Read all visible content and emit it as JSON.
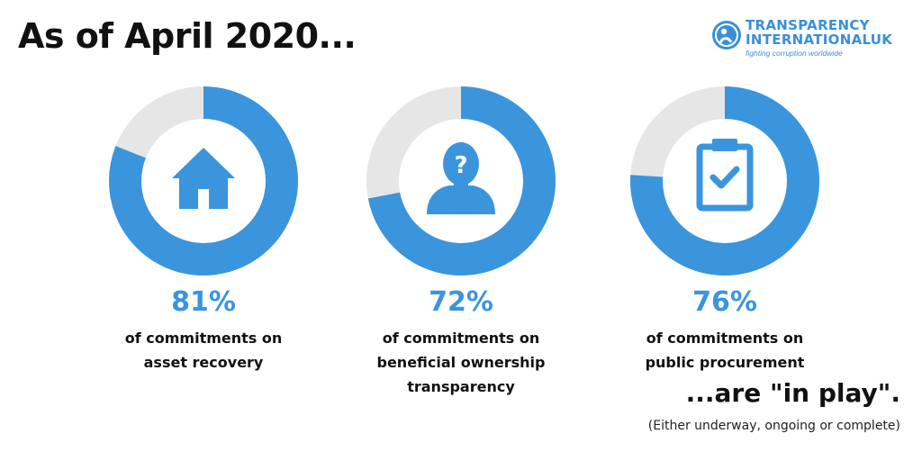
{
  "title": "As of April 2020...",
  "logo": {
    "line1": "TRANSPARENCY",
    "line2": "INTERNATIONALUK",
    "tagline": "fighting corruption worldwide",
    "color": "#3a8fd8"
  },
  "colors": {
    "accent": "#3a95dd",
    "track": "#e6e6e6"
  },
  "chart_data": [
    {
      "type": "pie",
      "style": "donut",
      "percent": 81,
      "label": "81%",
      "description": [
        "of commitments on",
        "asset recovery"
      ],
      "icon": "house-icon"
    },
    {
      "type": "pie",
      "style": "donut",
      "percent": 72,
      "label": "72%",
      "description": [
        "of commitments on",
        "beneficial ownership",
        "transparency"
      ],
      "icon": "person-question-icon"
    },
    {
      "type": "pie",
      "style": "donut",
      "percent": 76,
      "label": "76%",
      "description": [
        "of commitments on",
        "public procurement"
      ],
      "icon": "clipboard-check-icon"
    }
  ],
  "footer": {
    "headline": "...are \"in play\".",
    "note": "(Either underway, ongoing or complete)"
  }
}
